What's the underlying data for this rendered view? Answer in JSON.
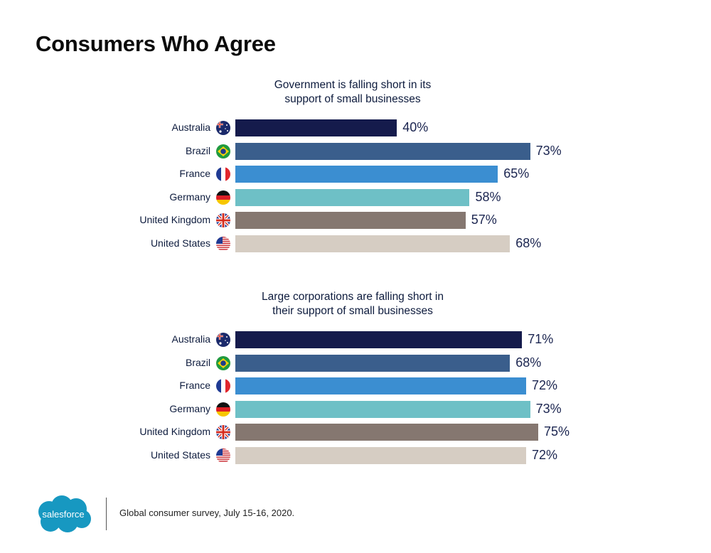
{
  "page": {
    "title": "Consumers Who Agree",
    "footer_note": "Global consumer survey, July 15-16, 2020.",
    "logo_text": "salesforce"
  },
  "colors": {
    "Australia": "#151b4c",
    "Brazil": "#3a5e8c",
    "France": "#3b8ed1",
    "Germany": "#6ec0c6",
    "United Kingdom": "#857770",
    "United States": "#d6cdc3"
  },
  "chart_data": [
    {
      "type": "bar",
      "orientation": "horizontal",
      "title": "Government is falling short in its support of small businesses",
      "title_lines": [
        "Government is falling short in its",
        "support of small businesses"
      ],
      "categories": [
        "Australia",
        "Brazil",
        "France",
        "Germany",
        "United Kingdom",
        "United States"
      ],
      "values": [
        40,
        73,
        65,
        58,
        57,
        68
      ],
      "value_labels": [
        "40%",
        "73%",
        "65%",
        "58%",
        "57%",
        "68%"
      ],
      "unit": "%",
      "xlim": [
        0,
        75
      ],
      "grid": false
    },
    {
      "type": "bar",
      "orientation": "horizontal",
      "title": "Large corporations are falling short in their support of small businesses",
      "title_lines": [
        "Large corporations are falling short in",
        "their support of small businesses"
      ],
      "categories": [
        "Australia",
        "Brazil",
        "France",
        "Germany",
        "United Kingdom",
        "United States"
      ],
      "values": [
        71,
        68,
        72,
        73,
        75,
        72
      ],
      "value_labels": [
        "71%",
        "68%",
        "72%",
        "73%",
        "75%",
        "72%"
      ],
      "unit": "%",
      "xlim": [
        0,
        75
      ],
      "grid": false
    }
  ]
}
